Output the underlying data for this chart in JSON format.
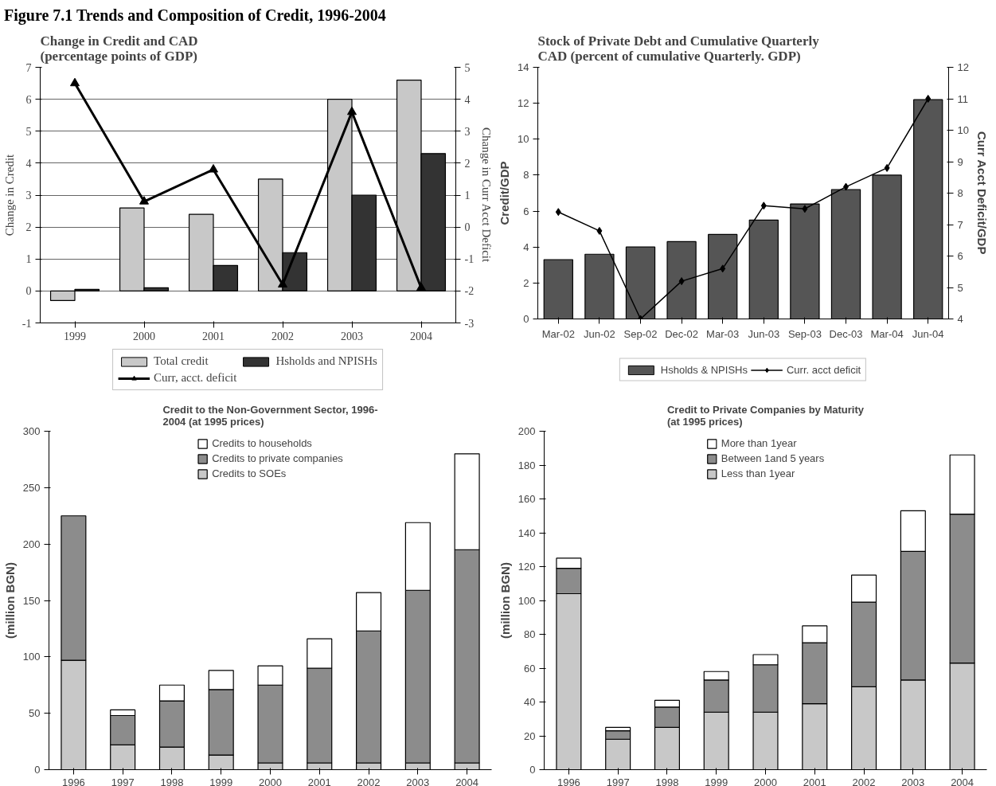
{
  "chart_data": [
    {
      "type": "bar",
      "title": "Change in Credit and CAD\n(percentage points of GDP)",
      "ylabel": "Change in Credit",
      "y2label": "Change in Curr Acct Deficit",
      "annotations": [
        "Figure 7.1 Trends and Composition of Credit, 1996-2004"
      ],
      "categories": [
        "1999",
        "2000",
        "2001",
        "2002",
        "2003",
        "2004"
      ],
      "series": [
        {
          "name": "Total credit",
          "color": "#c8c8c8",
          "values": [
            -0.3,
            2.6,
            2.4,
            3.5,
            6.0,
            6.6
          ]
        },
        {
          "name": "Hsholds and NPISHs",
          "color": "#333333",
          "values": [
            0.05,
            0.1,
            0.8,
            1.2,
            3.0,
            4.3
          ]
        },
        {
          "name": "Curr, acct. deficit",
          "type": "line",
          "axis": "y2",
          "color": "#000000",
          "values": [
            4.5,
            0.8,
            1.8,
            -1.8,
            3.6,
            -1.9
          ]
        }
      ],
      "ylim": [
        -1,
        7
      ],
      "yticks": [
        -1,
        0,
        1,
        2,
        3,
        4,
        5,
        6,
        7
      ],
      "y2lim": [
        -3,
        5
      ],
      "y2ticks": [
        -3,
        -2,
        -1,
        0,
        1,
        2,
        3,
        4,
        5
      ],
      "grid": "y",
      "legend": "bottom",
      "marker": "triangle"
    },
    {
      "type": "bar",
      "title": "Stock of Private Debt and Cumulative Quarterly\nCAD (percent of cumulative Quarterly. GDP)",
      "ylabel": "Credit/GDP",
      "y2label": "Curr Acct Deficit/GDP",
      "categories": [
        "Mar-02",
        "Jun-02",
        "Sep-02",
        "Dec-02",
        "Mar-03",
        "Jun-03",
        "Sep-03",
        "Dec-03",
        "Mar-04",
        "Jun-04"
      ],
      "series": [
        {
          "name": "Hsholds & NPISHs",
          "color": "#555555",
          "values": [
            3.3,
            3.6,
            4.0,
            4.3,
            4.7,
            5.5,
            6.4,
            7.2,
            8.0,
            12.2
          ]
        },
        {
          "name": "Curr. acct deficit",
          "type": "line",
          "axis": "y2",
          "color": "#000000",
          "values": [
            7.4,
            6.8,
            4.0,
            5.2,
            5.6,
            7.6,
            7.5,
            8.2,
            8.8,
            11.0
          ]
        }
      ],
      "ylim": [
        0,
        14
      ],
      "yticks": [
        0,
        2,
        4,
        6,
        8,
        10,
        12,
        14
      ],
      "y2lim": [
        4,
        12
      ],
      "y2ticks": [
        4,
        5,
        6,
        7,
        8,
        9,
        10,
        11,
        12
      ],
      "legend": "bottom",
      "marker": "diamond"
    },
    {
      "type": "bar",
      "title": "Credit to the Non-Government Sector, 1996-\n2004 (at 1995 prices)",
      "ylabel": "(million BGN)",
      "stacked": true,
      "categories": [
        "1996",
        "1997",
        "1998",
        "1999",
        "2000",
        "2001",
        "2002",
        "2003",
        "2004"
      ],
      "series": [
        {
          "name": "Credits to SOEs",
          "color": "#c8c8c8",
          "values": [
            97,
            22,
            20,
            13,
            6,
            6,
            6,
            6,
            6
          ]
        },
        {
          "name": "Credits to private companies",
          "color": "#8c8c8c",
          "values": [
            128,
            26,
            41,
            58,
            69,
            84,
            117,
            153,
            189
          ]
        },
        {
          "name": "Credits to households",
          "color": "#ffffff",
          "values": [
            null,
            5,
            14,
            17,
            17,
            26,
            34,
            60,
            85
          ]
        }
      ],
      "ylim": [
        0,
        300
      ],
      "yticks": [
        0,
        50,
        100,
        150,
        200,
        250,
        300
      ],
      "legend": "top"
    },
    {
      "type": "bar",
      "title": "Credit to Private Companies by Maturity\n(at 1995 prices)",
      "ylabel": "(million BGN)",
      "stacked": true,
      "categories": [
        "1996",
        "1997",
        "1998",
        "1999",
        "2000",
        "2001",
        "2002",
        "2003",
        "2004"
      ],
      "series": [
        {
          "name": "Less than 1year",
          "color": "#c8c8c8",
          "values": [
            104,
            18,
            25,
            34,
            34,
            39,
            49,
            53,
            63
          ]
        },
        {
          "name": "Between 1and 5 years",
          "color": "#8c8c8c",
          "values": [
            15,
            5,
            12,
            19,
            28,
            36,
            50,
            76,
            88
          ]
        },
        {
          "name": "More than 1year",
          "color": "#ffffff",
          "values": [
            6,
            2,
            4,
            5,
            6,
            10,
            16,
            24,
            35
          ]
        }
      ],
      "ylim": [
        0,
        200
      ],
      "yticks": [
        0,
        20,
        40,
        60,
        80,
        100,
        120,
        140,
        160,
        180,
        200
      ],
      "legend": "top"
    }
  ]
}
